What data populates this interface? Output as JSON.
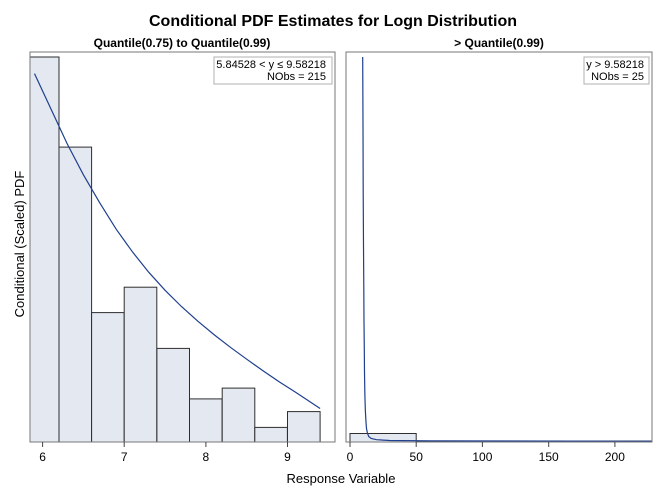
{
  "chart_data": {
    "type": "bar",
    "title": "Conditional PDF Estimates for Logn Distribution",
    "ylabel": "Conditional (Scaled) PDF",
    "xlabel": "Response Variable",
    "colors": {
      "bar_fill": "#e3e8f1",
      "bar_stroke": "#2e2e2e",
      "curve": "#1f3f8f",
      "frame": "#777777"
    },
    "panels": [
      {
        "id": "left",
        "title": "Quantile(0.75) to Quantile(0.99)",
        "inset_lines": [
          "5.84528 < y ≤ 9.58218",
          "NObs = 215"
        ],
        "xlim": [
          5.84528,
          9.58218
        ],
        "ylim": [
          0,
          1.0
        ],
        "xticks": [
          6,
          7,
          8,
          9
        ],
        "xtick_labels": [
          "6",
          "7",
          "8",
          "9"
        ],
        "bins": [
          {
            "start": 5.8,
            "end": 6.2,
            "height": 1.0
          },
          {
            "start": 6.2,
            "end": 6.6,
            "height": 0.766
          },
          {
            "start": 6.6,
            "end": 7.0,
            "height": 0.336
          },
          {
            "start": 7.0,
            "end": 7.4,
            "height": 0.402
          },
          {
            "start": 7.4,
            "end": 7.8,
            "height": 0.243
          },
          {
            "start": 7.8,
            "end": 8.2,
            "height": 0.112
          },
          {
            "start": 8.2,
            "end": 8.6,
            "height": 0.14
          },
          {
            "start": 8.6,
            "end": 9.0,
            "height": 0.038
          },
          {
            "start": 9.0,
            "end": 9.4,
            "height": 0.079
          }
        ],
        "curve": {
          "x": [
            5.9,
            6.1,
            6.3,
            6.5,
            6.7,
            6.9,
            7.1,
            7.3,
            7.5,
            7.7,
            7.9,
            8.1,
            8.3,
            8.5,
            8.7,
            8.9,
            9.1,
            9.4
          ],
          "y": [
            0.957,
            0.866,
            0.775,
            0.694,
            0.621,
            0.553,
            0.494,
            0.441,
            0.394,
            0.352,
            0.314,
            0.279,
            0.246,
            0.215,
            0.185,
            0.156,
            0.129,
            0.087
          ]
        }
      },
      {
        "id": "right",
        "title": "> Quantile(0.99)",
        "inset_lines": [
          "y > 9.58218",
          "NObs = 25"
        ],
        "xlim": [
          -3,
          228
        ],
        "ylim": [
          0,
          1.0
        ],
        "xticks": [
          0,
          50,
          100,
          150,
          200
        ],
        "xtick_labels": [
          "0",
          "50",
          "100",
          "150",
          "200"
        ],
        "bins": [
          {
            "start": 0,
            "end": 50,
            "height": 0.022
          },
          {
            "start": 50,
            "end": 228,
            "height": 0.0026
          }
        ],
        "curve": {
          "x": [
            9.6,
            9.8,
            10.0,
            10.2,
            10.4,
            10.6,
            10.8,
            11.0,
            11.3,
            11.6,
            12.0,
            12.5,
            13.2,
            14.2,
            16.0,
            20.0,
            30.0,
            60.0,
            120.0,
            228.0
          ],
          "y": [
            1.0,
            0.82,
            0.65,
            0.51,
            0.4,
            0.31,
            0.24,
            0.18,
            0.12,
            0.085,
            0.055,
            0.035,
            0.022,
            0.014,
            0.009,
            0.006,
            0.004,
            0.003,
            0.0025,
            0.0022
          ]
        }
      }
    ]
  }
}
